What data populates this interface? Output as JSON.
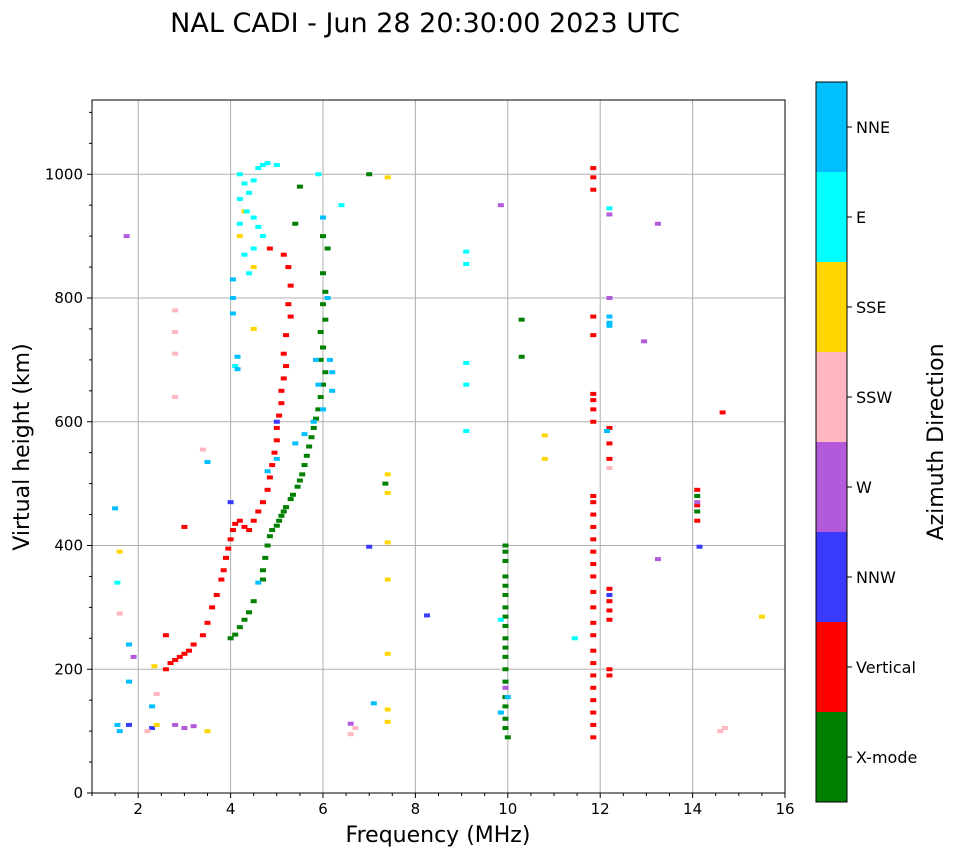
{
  "chart_data": {
    "type": "scatter",
    "title": "NAL CADI - Jun 28 20:30:00 2023 UTC",
    "xlabel": "Frequency (MHz)",
    "ylabel": "Virtual height (km)",
    "xlim": [
      1,
      16
    ],
    "ylim": [
      0,
      1120
    ],
    "xticks": [
      2,
      4,
      6,
      8,
      10,
      12,
      14,
      16
    ],
    "yticks": [
      0,
      200,
      400,
      600,
      800,
      1000
    ],
    "grid": true,
    "colorbar": {
      "title": "Azimuth Direction",
      "categories": [
        {
          "name": "X-mode",
          "color": "#008000"
        },
        {
          "name": "Vertical",
          "color": "#ff0000"
        },
        {
          "name": "NNW",
          "color": "#3a3aff"
        },
        {
          "name": "W",
          "color": "#b35adb"
        },
        {
          "name": "SSW",
          "color": "#ffb6c1"
        },
        {
          "name": "SSE",
          "color": "#ffd700"
        },
        {
          "name": "E",
          "color": "#00ffff"
        },
        {
          "name": "NNE",
          "color": "#00bfff"
        }
      ]
    },
    "series": [
      {
        "name": "X-mode",
        "points": [
          [
            4.0,
            250
          ],
          [
            4.1,
            256
          ],
          [
            4.2,
            268
          ],
          [
            4.3,
            280
          ],
          [
            4.4,
            292
          ],
          [
            4.5,
            310
          ],
          [
            4.7,
            345
          ],
          [
            4.7,
            360
          ],
          [
            4.75,
            380
          ],
          [
            4.8,
            400
          ],
          [
            4.85,
            415
          ],
          [
            4.9,
            425
          ],
          [
            5.0,
            432
          ],
          [
            5.05,
            440
          ],
          [
            5.1,
            448
          ],
          [
            5.15,
            455
          ],
          [
            5.2,
            462
          ],
          [
            5.3,
            475
          ],
          [
            5.35,
            482
          ],
          [
            5.45,
            495
          ],
          [
            5.5,
            505
          ],
          [
            5.55,
            515
          ],
          [
            5.6,
            530
          ],
          [
            5.65,
            545
          ],
          [
            5.7,
            560
          ],
          [
            5.75,
            575
          ],
          [
            5.8,
            590
          ],
          [
            5.85,
            605
          ],
          [
            5.9,
            620
          ],
          [
            5.95,
            640
          ],
          [
            6.0,
            660
          ],
          [
            6.05,
            680
          ],
          [
            5.95,
            700
          ],
          [
            6.0,
            720
          ],
          [
            5.95,
            745
          ],
          [
            6.05,
            765
          ],
          [
            6.0,
            790
          ],
          [
            6.05,
            810
          ],
          [
            6.0,
            840
          ],
          [
            6.1,
            880
          ],
          [
            6.0,
            900
          ],
          [
            5.4,
            920
          ],
          [
            5.5,
            980
          ],
          [
            7.0,
            1000
          ],
          [
            7.35,
            500
          ],
          [
            10.3,
            765
          ],
          [
            10.3,
            705
          ],
          [
            10.0,
            90
          ],
          [
            9.95,
            105
          ],
          [
            9.95,
            120
          ],
          [
            9.95,
            140
          ],
          [
            9.95,
            155
          ],
          [
            9.95,
            180
          ],
          [
            9.95,
            200
          ],
          [
            9.95,
            220
          ],
          [
            9.95,
            235
          ],
          [
            9.95,
            250
          ],
          [
            9.95,
            270
          ],
          [
            9.95,
            285
          ],
          [
            9.95,
            300
          ],
          [
            9.95,
            320
          ],
          [
            9.95,
            335
          ],
          [
            9.95,
            350
          ],
          [
            9.95,
            375
          ],
          [
            9.95,
            390
          ],
          [
            9.95,
            400
          ],
          [
            14.1,
            480
          ],
          [
            14.1,
            455
          ]
        ]
      },
      {
        "name": "Vertical",
        "points": [
          [
            2.6,
            200
          ],
          [
            2.7,
            210
          ],
          [
            2.8,
            215
          ],
          [
            2.9,
            220
          ],
          [
            3.0,
            225
          ],
          [
            3.1,
            230
          ],
          [
            3.2,
            240
          ],
          [
            3.4,
            255
          ],
          [
            3.5,
            275
          ],
          [
            3.6,
            300
          ],
          [
            3.7,
            320
          ],
          [
            3.8,
            345
          ],
          [
            3.85,
            360
          ],
          [
            3.9,
            380
          ],
          [
            3.95,
            395
          ],
          [
            4.0,
            410
          ],
          [
            4.05,
            425
          ],
          [
            4.1,
            435
          ],
          [
            4.2,
            440
          ],
          [
            4.3,
            430
          ],
          [
            4.4,
            425
          ],
          [
            4.5,
            440
          ],
          [
            4.6,
            455
          ],
          [
            4.7,
            470
          ],
          [
            4.8,
            490
          ],
          [
            4.85,
            510
          ],
          [
            4.9,
            530
          ],
          [
            4.95,
            550
          ],
          [
            5.0,
            570
          ],
          [
            5.0,
            590
          ],
          [
            5.05,
            610
          ],
          [
            5.1,
            630
          ],
          [
            5.1,
            650
          ],
          [
            5.15,
            670
          ],
          [
            5.2,
            690
          ],
          [
            5.15,
            710
          ],
          [
            5.2,
            740
          ],
          [
            5.3,
            770
          ],
          [
            5.25,
            790
          ],
          [
            5.3,
            820
          ],
          [
            5.25,
            850
          ],
          [
            5.15,
            870
          ],
          [
            4.85,
            880
          ],
          [
            3.0,
            430
          ],
          [
            2.6,
            255
          ],
          [
            11.85,
            90
          ],
          [
            11.85,
            110
          ],
          [
            11.85,
            130
          ],
          [
            11.85,
            150
          ],
          [
            11.85,
            170
          ],
          [
            11.85,
            190
          ],
          [
            11.85,
            210
          ],
          [
            11.85,
            230
          ],
          [
            11.85,
            255
          ],
          [
            11.85,
            275
          ],
          [
            11.85,
            300
          ],
          [
            11.85,
            325
          ],
          [
            11.85,
            350
          ],
          [
            11.85,
            370
          ],
          [
            11.85,
            390
          ],
          [
            11.85,
            410
          ],
          [
            11.85,
            430
          ],
          [
            11.85,
            450
          ],
          [
            11.85,
            470
          ],
          [
            11.85,
            480
          ],
          [
            11.85,
            600
          ],
          [
            11.85,
            620
          ],
          [
            11.85,
            635
          ],
          [
            11.85,
            645
          ],
          [
            11.85,
            740
          ],
          [
            11.85,
            770
          ],
          [
            11.85,
            975
          ],
          [
            11.85,
            995
          ],
          [
            11.85,
            1010
          ],
          [
            12.2,
            190
          ],
          [
            12.2,
            200
          ],
          [
            12.2,
            280
          ],
          [
            12.2,
            295
          ],
          [
            12.2,
            310
          ],
          [
            12.2,
            330
          ],
          [
            12.2,
            540
          ],
          [
            12.2,
            565
          ],
          [
            12.2,
            590
          ],
          [
            14.1,
            440
          ],
          [
            14.1,
            465
          ],
          [
            14.1,
            490
          ],
          [
            14.65,
            615
          ]
        ]
      },
      {
        "name": "NNW",
        "points": [
          [
            1.8,
            110
          ],
          [
            2.3,
            105
          ],
          [
            4.0,
            470
          ],
          [
            5.0,
            600
          ],
          [
            7.0,
            398
          ],
          [
            8.25,
            287
          ],
          [
            12.2,
            320
          ],
          [
            14.15,
            398
          ]
        ]
      },
      {
        "name": "W",
        "points": [
          [
            1.75,
            900
          ],
          [
            2.8,
            110
          ],
          [
            3.0,
            105
          ],
          [
            3.2,
            108
          ],
          [
            12.2,
            935
          ],
          [
            12.2,
            800
          ],
          [
            12.95,
            730
          ],
          [
            13.25,
            920
          ],
          [
            13.25,
            378
          ],
          [
            14.1,
            470
          ],
          [
            9.85,
            950
          ],
          [
            6.6,
            112
          ],
          [
            9.95,
            170
          ],
          [
            1.9,
            220
          ]
        ]
      },
      {
        "name": "SSW",
        "points": [
          [
            1.6,
            290
          ],
          [
            2.4,
            160
          ],
          [
            2.8,
            780
          ],
          [
            2.8,
            745
          ],
          [
            2.8,
            710
          ],
          [
            2.8,
            640
          ],
          [
            3.4,
            555
          ],
          [
            6.6,
            95
          ],
          [
            6.7,
            105
          ],
          [
            12.2,
            525
          ],
          [
            14.6,
            100
          ],
          [
            14.7,
            105
          ],
          [
            2.2,
            100
          ]
        ]
      },
      {
        "name": "SSE",
        "points": [
          [
            1.6,
            390
          ],
          [
            2.4,
            110
          ],
          [
            3.5,
            100
          ],
          [
            4.5,
            750
          ],
          [
            4.5,
            850
          ],
          [
            4.2,
            900
          ],
          [
            4.3,
            940
          ],
          [
            7.4,
            995
          ],
          [
            7.4,
            515
          ],
          [
            7.4,
            485
          ],
          [
            7.4,
            405
          ],
          [
            7.4,
            345
          ],
          [
            7.4,
            225
          ],
          [
            7.4,
            135
          ],
          [
            7.4,
            115
          ],
          [
            10.8,
            578
          ],
          [
            10.8,
            540
          ],
          [
            15.5,
            285
          ],
          [
            2.35,
            205
          ]
        ]
      },
      {
        "name": "E",
        "points": [
          [
            4.2,
            1000
          ],
          [
            4.3,
            985
          ],
          [
            4.4,
            970
          ],
          [
            4.5,
            990
          ],
          [
            4.6,
            1010
          ],
          [
            4.7,
            1015
          ],
          [
            4.8,
            1018
          ],
          [
            5.0,
            1015
          ],
          [
            4.2,
            960
          ],
          [
            4.35,
            940
          ],
          [
            4.5,
            930
          ],
          [
            4.6,
            915
          ],
          [
            4.7,
            900
          ],
          [
            4.5,
            880
          ],
          [
            4.3,
            870
          ],
          [
            4.4,
            840
          ],
          [
            4.2,
            920
          ],
          [
            5.9,
            1000
          ],
          [
            6.4,
            950
          ],
          [
            9.1,
            875
          ],
          [
            9.1,
            855
          ],
          [
            9.1,
            695
          ],
          [
            9.1,
            660
          ],
          [
            9.1,
            585
          ],
          [
            9.85,
            280
          ],
          [
            11.45,
            250
          ],
          [
            12.2,
            945
          ],
          [
            1.55,
            340
          ],
          [
            4.1,
            690
          ]
        ]
      },
      {
        "name": "NNE",
        "points": [
          [
            1.5,
            460
          ],
          [
            1.55,
            110
          ],
          [
            1.6,
            100
          ],
          [
            1.8,
            180
          ],
          [
            1.8,
            240
          ],
          [
            2.3,
            140
          ],
          [
            4.05,
            830
          ],
          [
            4.05,
            800
          ],
          [
            4.05,
            775
          ],
          [
            4.15,
            705
          ],
          [
            4.15,
            685
          ],
          [
            5.85,
            700
          ],
          [
            5.9,
            660
          ],
          [
            6.15,
            700
          ],
          [
            6.2,
            680
          ],
          [
            6.2,
            650
          ],
          [
            6.0,
            620
          ],
          [
            5.8,
            600
          ],
          [
            5.6,
            580
          ],
          [
            5.4,
            565
          ],
          [
            5.0,
            540
          ],
          [
            4.8,
            520
          ],
          [
            4.6,
            340
          ],
          [
            3.5,
            535
          ],
          [
            6.0,
            930
          ],
          [
            6.1,
            800
          ],
          [
            12.2,
            770
          ],
          [
            12.2,
            755
          ],
          [
            12.2,
            760
          ],
          [
            12.15,
            585
          ],
          [
            7.1,
            145
          ],
          [
            9.85,
            130
          ],
          [
            10.0,
            155
          ]
        ]
      }
    ]
  }
}
